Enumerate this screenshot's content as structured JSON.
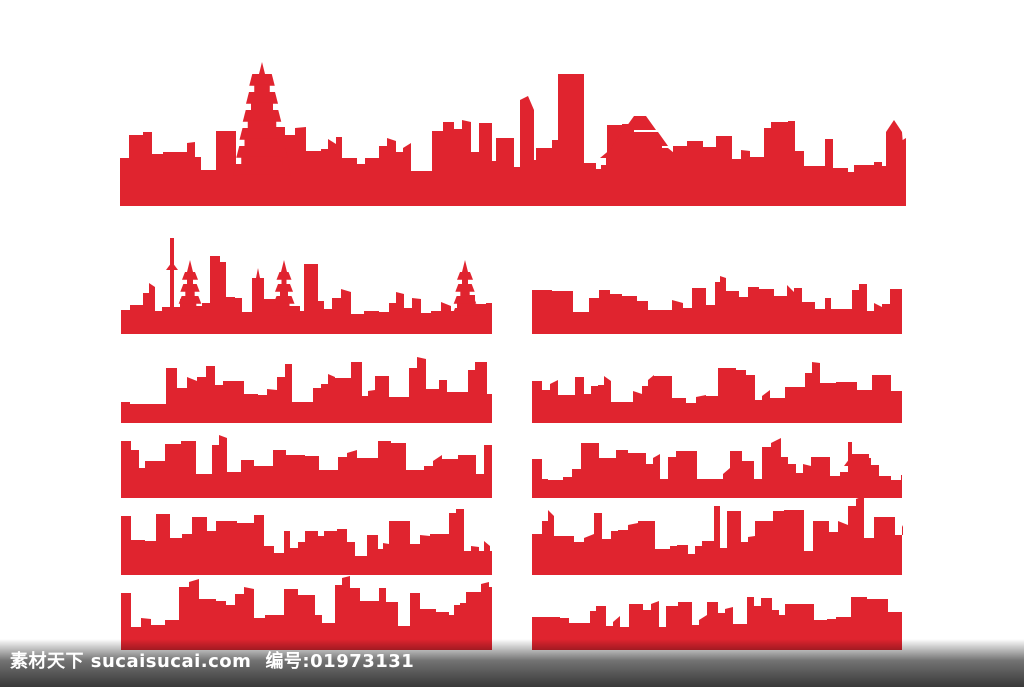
{
  "colors": {
    "background": "#ffffff",
    "silhouette": "#e0242f"
  },
  "skylines": [
    {
      "id": "skyline-top-large"
    },
    {
      "id": "skyline-left-1"
    },
    {
      "id": "skyline-left-2"
    },
    {
      "id": "skyline-left-3"
    },
    {
      "id": "skyline-left-4"
    },
    {
      "id": "skyline-left-5"
    },
    {
      "id": "skyline-right-1"
    },
    {
      "id": "skyline-right-2"
    },
    {
      "id": "skyline-right-3"
    },
    {
      "id": "skyline-right-4"
    },
    {
      "id": "skyline-right-5"
    }
  ],
  "watermark": {
    "site": "素材天下 sucaisucai.com",
    "id_label": "编号:",
    "id_value": "01973131"
  }
}
